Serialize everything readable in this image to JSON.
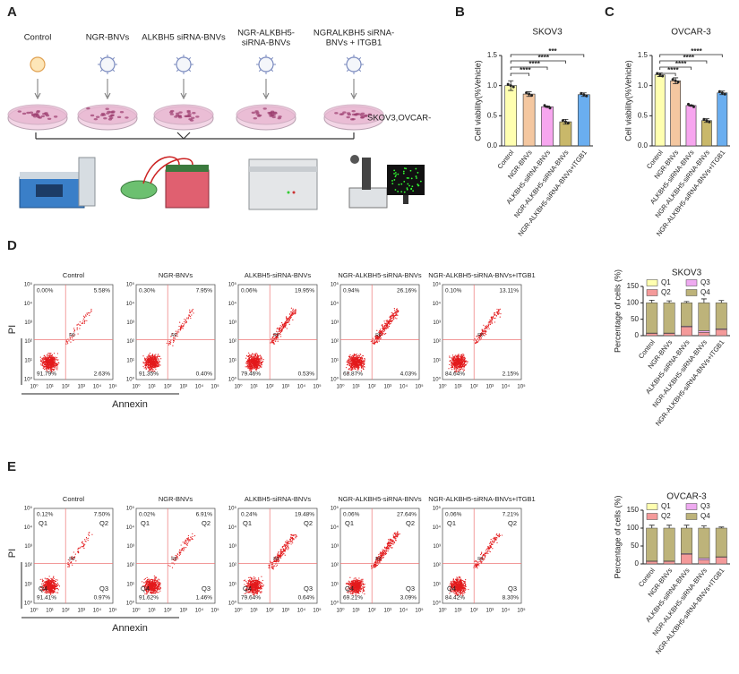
{
  "panel_labels": [
    "A",
    "B",
    "C",
    "D",
    "E"
  ],
  "schematic": {
    "groups": [
      [
        "Control"
      ],
      [
        "NGR-BNVs"
      ],
      [
        "ALKBH5 siRNA-BNVs"
      ],
      [
        "NGR-ALKBH5-",
        "siRNA-BNVs"
      ],
      [
        "NGRALKBH5 siRNA-",
        "BNVs + ITGB1"
      ]
    ],
    "cells": "SKOV3,OVCAR-"
  },
  "chart_data": [
    {
      "type": "bar",
      "title": "SKOV3",
      "ylabel": "Cell viability(%Vehicle)",
      "categories": [
        "Control",
        "NGR-BNVs",
        "ALKBH5-siRNA-BNVs",
        "NGR-ALKBH5-siRNA-BNVs",
        "NGR-ALKBH5-siRNA-BNVs+ITGB1"
      ],
      "values": [
        1.0,
        0.86,
        0.65,
        0.4,
        0.85
      ],
      "errors": [
        0.08,
        0.04,
        0.01,
        0.04,
        0.03
      ],
      "colors": [
        "#ffffb0",
        "#f4c7a0",
        "#f7a6ef",
        "#c9b86a",
        "#6aaef0"
      ],
      "ylim": [
        0,
        1.5
      ],
      "yticks": [
        {
          "value": 0,
          "label": "0.0"
        },
        {
          "value": 0.5,
          "label": "0.5"
        },
        {
          "value": 1,
          "label": "1.0"
        },
        {
          "value": 1.5,
          "label": "1.5"
        }
      ],
      "significance": [
        "****",
        "****",
        "****",
        "***"
      ]
    },
    {
      "type": "bar",
      "title": "OVCAR-3",
      "ylabel": "Cell viability(%Vehicle)",
      "categories": [
        "Control",
        "NGR-BNVs",
        "ALKBH5-siRNA-BNVs",
        "NGR-ALKBH5-siRNA-BNVs",
        "NGR-ALKBH5-siRNA-BNVs+ITGB1"
      ],
      "values": [
        1.18,
        1.08,
        0.67,
        0.42,
        0.88
      ],
      "errors": [
        0.03,
        0.05,
        0.01,
        0.03,
        0.03
      ],
      "colors": [
        "#ffffb0",
        "#f4c7a0",
        "#f7a6ef",
        "#c9b86a",
        "#6aaef0"
      ],
      "ylim": [
        0,
        1.5
      ],
      "yticks": [
        {
          "value": 0,
          "label": "0.0"
        },
        {
          "value": 0.5,
          "label": "0.5"
        },
        {
          "value": 1,
          "label": "1.0"
        },
        {
          "value": 1.5,
          "label": "1.5"
        }
      ],
      "significance": [
        "****",
        "****",
        "****",
        "****"
      ]
    },
    {
      "type": "stacked_bar",
      "title": "SKOV3",
      "ylabel": "Percentage of cells (%)",
      "categories": [
        "Control",
        "NGR-BNVs",
        "ALKBH5-siRNA-BNVs",
        "NGR-ALKBH5-siRNA-BNVs",
        "NGR-ALKBH5-siRNA-BNVs+ITGB1"
      ],
      "series": [
        {
          "name": "Q1",
          "color": "#ffffb0",
          "values": [
            0,
            0,
            0,
            0,
            0
          ]
        },
        {
          "name": "Q2",
          "color": "#f49a9a",
          "values": [
            7,
            7,
            27,
            10,
            19
          ]
        },
        {
          "name": "Q3",
          "color": "#eeaaf0",
          "values": [
            1,
            1,
            2,
            5,
            2
          ]
        },
        {
          "name": "Q4",
          "color": "#bdb37a",
          "values": [
            92,
            92,
            71,
            85,
            79
          ],
          "errors": [
            8,
            6,
            4,
            12,
            7
          ]
        }
      ],
      "ylim": [
        0,
        150
      ],
      "yticks": [
        0,
        50,
        100,
        150
      ]
    },
    {
      "type": "stacked_bar",
      "title": "OVCAR-3",
      "ylabel": "Percentage of cells (%)",
      "categories": [
        "Control",
        "NGR-BNVs",
        "ALKBH5-siRNA-BNVs",
        "NGR-ALKBH5-siRNA-BNVs",
        "NGR-ALKBH5-siRNA-BNVs+ITGB1"
      ],
      "series": [
        {
          "name": "Q1",
          "color": "#ffffb0",
          "values": [
            0,
            0,
            0,
            0,
            0
          ]
        },
        {
          "name": "Q2",
          "color": "#f49a9a",
          "values": [
            7,
            7,
            27,
            11,
            19
          ]
        },
        {
          "name": "Q3",
          "color": "#eeaaf0",
          "values": [
            1,
            1,
            2,
            5,
            1
          ]
        },
        {
          "name": "Q4",
          "color": "#bdb37a",
          "values": [
            92,
            92,
            71,
            84,
            80
          ],
          "errors": [
            8,
            8,
            8,
            6,
            3
          ]
        }
      ],
      "ylim": [
        0,
        150
      ],
      "yticks": [
        0,
        50,
        100,
        150
      ]
    }
  ],
  "flow_d": {
    "ylabel": "PI",
    "xlabel": "Annexin",
    "gate": "R0",
    "ticks": [
      "10⁰",
      "10¹",
      "10²",
      "10³",
      "10⁴",
      "10⁵"
    ],
    "titles": [
      "Control",
      "NGR-BNVs",
      "ALKBH5-siRNA-BNVs",
      "NGR-ALKBH5-siRNA-BNVs",
      "NGR-ALKBH5-siRNA-BNVs+ITGB1"
    ],
    "quadrants": [
      [
        "0.00%",
        "5.58%",
        "2.63%",
        "91.79%"
      ],
      [
        "0.30%",
        "7.95%",
        "0.40%",
        "91.35%"
      ],
      [
        "0.06%",
        "19.95%",
        "0.53%",
        "79.46%"
      ],
      [
        "0.94%",
        "26.16%",
        "4.03%",
        "68.87%"
      ],
      [
        "0.10%",
        "13.11%",
        "2.15%",
        "84.64%"
      ]
    ]
  },
  "flow_e": {
    "ylabel": "PI",
    "xlabel": "Annexin",
    "gate": "R0",
    "ticks": [
      "10⁰",
      "10¹",
      "10²",
      "10³",
      "10⁴",
      "10⁵"
    ],
    "quadrant_names": [
      "Q1",
      "Q2",
      "Q3",
      "Q4"
    ],
    "titles": [
      "Control",
      "NGR-BNVs",
      "ALKBH5-siRNA-BNVs",
      "NGR-ALKBH5-siRNA-BNVs",
      "NGR-ALKBH5-siRNA-BNVs+ITGB1"
    ],
    "quadrants": [
      [
        "0.12%",
        "7.50%",
        "0.97%",
        "91.41%"
      ],
      [
        "0.02%",
        "6.91%",
        "1.46%",
        "91.62%"
      ],
      [
        "0.24%",
        "19.48%",
        "0.64%",
        "79.64%"
      ],
      [
        "0.06%",
        "27.64%",
        "3.09%",
        "69.21%"
      ],
      [
        "0.06%",
        "7.21%",
        "8.30%",
        "84.42%"
      ]
    ]
  }
}
